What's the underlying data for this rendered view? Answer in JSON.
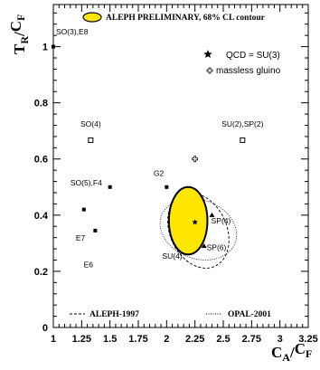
{
  "chart_data": {
    "type": "scatter",
    "xlabel_main": "C",
    "xlabel_sub": "A",
    "xlabel_den": "C",
    "xlabel_den_sub": "F",
    "ylabel_main": "T",
    "ylabel_sub": "R",
    "ylabel_den": "C",
    "ylabel_den_sub": "F",
    "xlim": [
      1,
      3.25
    ],
    "ylim": [
      0,
      1.15
    ],
    "xticks": [
      1,
      1.25,
      1.5,
      1.75,
      2,
      2.25,
      2.5,
      2.75,
      3,
      3.25
    ],
    "xtick_labels": [
      "1",
      "1.25",
      "1.5",
      "1.75",
      "2",
      "2.25",
      "2.5",
      "2.75",
      "3",
      "3.25"
    ],
    "yticks": [
      0,
      0.2,
      0.4,
      0.6,
      0.8,
      1
    ],
    "ytick_labels": [
      "0",
      "0.2",
      "0.4",
      "0.6",
      "0.8",
      "1"
    ],
    "legend_top": {
      "contour_label": "ALEPH PRELIMINARY, 68% CL contour",
      "qcd_label": "QCD = SU(3)",
      "gluino_label": "massless gluino"
    },
    "legend_bottom": {
      "aleph_label": "ALEPH-1997",
      "opal_label": "OPAL-2001"
    },
    "points": [
      {
        "label": "SO(3),E8",
        "x": 1.0,
        "y": 1.0,
        "marker": "square"
      },
      {
        "label": "SO(4)",
        "x": 1.33,
        "y": 0.667,
        "marker": "open-square"
      },
      {
        "label": "SU(2),SP(2)",
        "x": 2.67,
        "y": 0.667,
        "marker": "open-square"
      },
      {
        "label": "SO(5),F4",
        "x": 1.5,
        "y": 0.5,
        "marker": "square"
      },
      {
        "label": "G2",
        "x": 2.0,
        "y": 0.5,
        "marker": "square"
      },
      {
        "label": "",
        "x": 1.27,
        "y": 0.42,
        "marker": "square"
      },
      {
        "label": "E7",
        "x": 1.37,
        "y": 0.345,
        "marker": "square"
      },
      {
        "label": "E6",
        "x": 1.33,
        "y": 0.23,
        "marker": "none"
      },
      {
        "label": "SP(4)",
        "x": 2.4,
        "y": 0.4,
        "marker": "triangle"
      },
      {
        "label": "SP(6)",
        "x": 2.33,
        "y": 0.29,
        "marker": "triangle"
      },
      {
        "label": "SU(4)",
        "x": 2.13,
        "y": 0.25,
        "marker": "none"
      }
    ],
    "qcd_point": {
      "x": 2.25,
      "y": 0.375
    },
    "gluino_point": {
      "x": 2.25,
      "y": 0.6
    },
    "aleph_contour": {
      "cx": 2.19,
      "cy": 0.38,
      "rx": 0.17,
      "ry": 0.12,
      "angle": 0
    },
    "aleph_1997_contour": {
      "cx": 2.28,
      "cy": 0.345,
      "rx": 0.25,
      "ry": 0.14,
      "angle": -25
    },
    "opal_2001_contour": {
      "cx": 2.28,
      "cy": 0.35,
      "rx": 0.26,
      "ry": 0.14,
      "angle": -70
    },
    "fill_color": "#ffe600"
  }
}
